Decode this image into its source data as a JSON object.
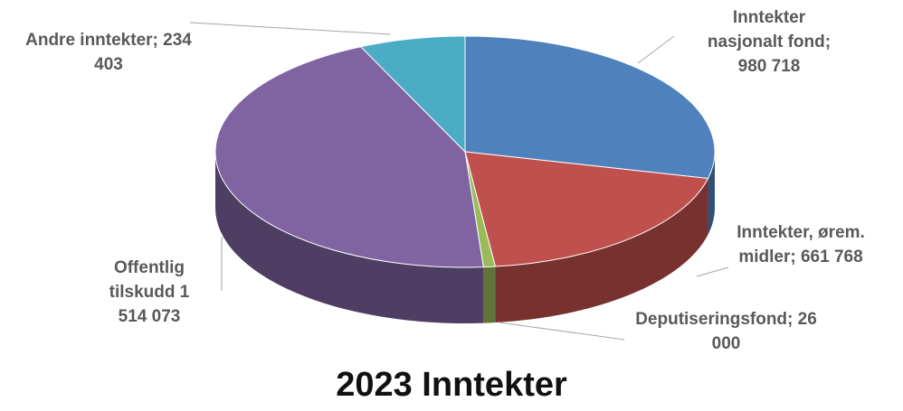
{
  "chart_data": {
    "type": "pie3d",
    "title": "2023 Inntekter",
    "categories": [
      "Inntekter nasjonalt fond;",
      "Inntekter, ørem. midler;",
      "Deputiseringsfond;",
      "Offentlig tilskudd",
      "Andre inntekter;"
    ],
    "values": [
      980718,
      661768,
      26000,
      1514073,
      234403
    ],
    "value_labels": [
      "980 718",
      "661 768",
      "26 000",
      "1 514 073",
      "234 403"
    ],
    "colors": [
      "#4f81bd",
      "#c0504d",
      "#9bbb59",
      "#8064a2",
      "#4bacc6"
    ]
  }
}
